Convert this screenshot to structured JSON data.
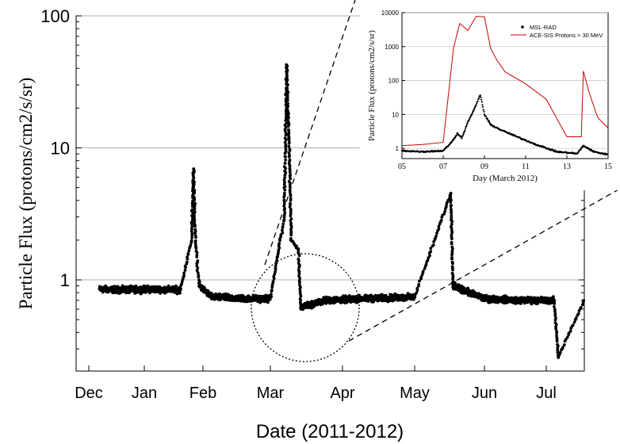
{
  "chart_data": [
    {
      "type": "scatter",
      "xlabel": "Date (2011-2012)",
      "ylabel": "Particle Flux (protons/cm2/s/sr)",
      "y_scale": "log",
      "ylim": [
        0.25,
        100
      ],
      "x_ticks": [
        "Dec",
        "Jan",
        "Feb",
        "Mar",
        "Apr",
        "May",
        "Jun",
        "Jul"
      ],
      "y_ticks": [
        "1",
        "10",
        "100"
      ],
      "gridlines_y": [
        1,
        10,
        100
      ],
      "color": "#000000",
      "series": [
        {
          "points": [
            [
              "Dec 07",
              0.85
            ],
            [
              "Dec 20",
              0.84
            ],
            [
              "Jan 05",
              0.85
            ],
            [
              "Jan 20",
              0.84
            ],
            [
              "Jan 26",
              2.0
            ],
            [
              "Jan 27",
              6.9
            ],
            [
              "Jan 28",
              2.0
            ],
            [
              "Jan 30",
              0.9
            ],
            [
              "Feb 05",
              0.74
            ],
            [
              "Feb 20",
              0.72
            ],
            [
              "Mar 01",
              0.72
            ],
            [
              "Mar 07",
              3.0
            ],
            [
              "Mar 08",
              42
            ],
            [
              "Mar 09",
              12
            ],
            [
              "Mar 10",
              2.0
            ],
            [
              "Mar 13",
              1.7
            ],
            [
              "Mar 14",
              0.62
            ],
            [
              "Mar 25",
              0.7
            ],
            [
              "Apr 10",
              0.72
            ],
            [
              "May 01",
              0.74
            ],
            [
              "May 17",
              4.5
            ],
            [
              "May 18",
              0.9
            ],
            [
              "Jun 01",
              0.72
            ],
            [
              "Jun 20",
              0.7
            ],
            [
              "Jul 05",
              0.7
            ],
            [
              "Jul 07",
              0.26
            ],
            [
              "Jul 20",
              0.7
            ]
          ]
        }
      ]
    },
    {
      "type": "line",
      "xlabel": "Day (March 2012)",
      "ylabel": "Particle Flux (protons/cm2/s/sr)",
      "y_scale": "log",
      "xlim": [
        5,
        15
      ],
      "ylim": [
        0.5,
        10000
      ],
      "x_ticks": [
        "05",
        "07",
        "09",
        "11",
        "13",
        "15"
      ],
      "y_ticks": [
        "1",
        "10",
        "100",
        "1000",
        "10000"
      ],
      "series": [
        {
          "name": "MSL-RAD",
          "color": "#000000",
          "marker": "dot",
          "points": [
            [
              5.0,
              0.85
            ],
            [
              6.0,
              0.8
            ],
            [
              7.0,
              0.85
            ],
            [
              7.4,
              1.5
            ],
            [
              7.7,
              2.8
            ],
            [
              7.9,
              2.0
            ],
            [
              8.2,
              6
            ],
            [
              8.5,
              14
            ],
            [
              8.8,
              38
            ],
            [
              9.0,
              10
            ],
            [
              9.3,
              5
            ],
            [
              9.8,
              3.5
            ],
            [
              10.5,
              2.3
            ],
            [
              11.5,
              1.3
            ],
            [
              12.5,
              0.8
            ],
            [
              13.5,
              0.7
            ],
            [
              13.8,
              1.2
            ],
            [
              14.3,
              0.8
            ],
            [
              15.0,
              0.65
            ]
          ]
        },
        {
          "name": "ACE-SIS Protons > 30 MeV",
          "color": "#cc0000",
          "marker": "line",
          "points": [
            [
              5.0,
              1.2
            ],
            [
              6.0,
              1.3
            ],
            [
              7.0,
              1.5
            ],
            [
              7.5,
              900
            ],
            [
              7.8,
              4800
            ],
            [
              8.2,
              3000
            ],
            [
              8.6,
              7800
            ],
            [
              9.0,
              7600
            ],
            [
              9.3,
              900
            ],
            [
              9.6,
              400
            ],
            [
              10.0,
              180
            ],
            [
              11.0,
              80
            ],
            [
              12.0,
              28
            ],
            [
              12.6,
              6
            ],
            [
              13.0,
              2.2
            ],
            [
              13.7,
              2.2
            ],
            [
              13.8,
              190
            ],
            [
              14.1,
              40
            ],
            [
              14.5,
              8
            ],
            [
              15.0,
              4
            ]
          ]
        }
      ]
    }
  ]
}
